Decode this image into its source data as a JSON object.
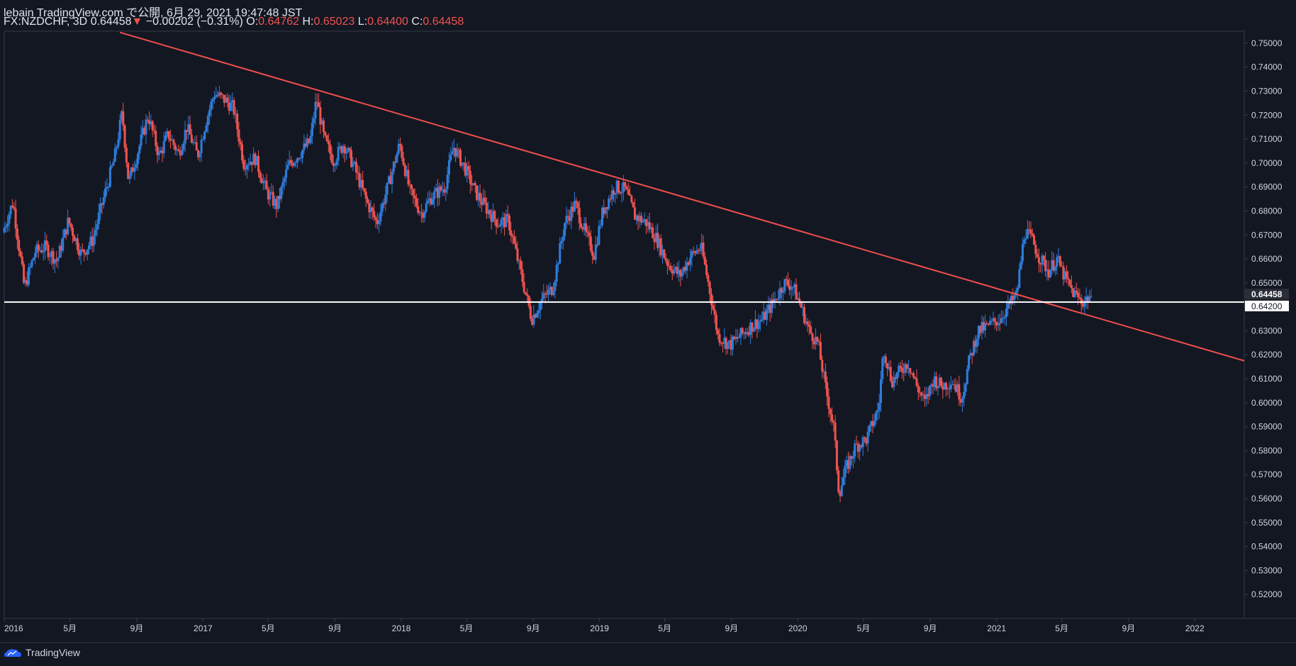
{
  "header": {
    "publisher_line": "lebain TradingView.com で公開, 6月 29, 2021 19:47:48 JST",
    "symbol": "FX:NZDCHF, 3D",
    "last": "0.64458",
    "change_arrow": "▼",
    "change": "−0.00202 (−0.31%)",
    "o_label": "O:",
    "o_value": "0.64762",
    "h_label": "H:",
    "h_value": "0.65023",
    "l_label": "L:",
    "l_value": "0.64400",
    "c_label": "C:",
    "c_value": "0.64458"
  },
  "footer": {
    "brand": "TradingView"
  },
  "colors": {
    "background": "#131722",
    "up": "#2f7ddc",
    "down": "#ef5350",
    "trendline": "#f04e4e",
    "hline": "#ffffff",
    "axis_text": "#d1d4dc",
    "border": "#363a45"
  },
  "chart_data": {
    "type": "candlestick",
    "ylim": [
      0.51,
      0.755
    ],
    "xlim": [
      "2016-01-01",
      "2022-04-02"
    ],
    "y_ticks": [
      "0.52000",
      "0.53000",
      "0.54000",
      "0.55000",
      "0.56000",
      "0.57000",
      "0.58000",
      "0.59000",
      "0.60000",
      "0.61000",
      "0.62000",
      "0.63000",
      "0.64000",
      "0.65000",
      "0.66000",
      "0.67000",
      "0.68000",
      "0.69000",
      "0.70000",
      "0.71000",
      "0.72000",
      "0.73000",
      "0.74000",
      "0.75000"
    ],
    "x_ticks": [
      {
        "label": "2016",
        "date": "2016-01-01"
      },
      {
        "label": "5月",
        "date": "2016-05-01"
      },
      {
        "label": "9月",
        "date": "2016-09-01"
      },
      {
        "label": "2017",
        "date": "2017-01-01"
      },
      {
        "label": "5月",
        "date": "2017-05-01"
      },
      {
        "label": "9月",
        "date": "2017-09-01"
      },
      {
        "label": "2018",
        "date": "2018-01-01"
      },
      {
        "label": "5月",
        "date": "2018-05-01"
      },
      {
        "label": "9月",
        "date": "2018-09-01"
      },
      {
        "label": "2019",
        "date": "2019-01-01"
      },
      {
        "label": "5月",
        "date": "2019-05-01"
      },
      {
        "label": "9月",
        "date": "2019-09-01"
      },
      {
        "label": "2020",
        "date": "2020-01-01"
      },
      {
        "label": "5月",
        "date": "2020-05-01"
      },
      {
        "label": "9月",
        "date": "2020-09-01"
      },
      {
        "label": "2021",
        "date": "2021-01-01"
      },
      {
        "label": "5月",
        "date": "2021-05-01"
      },
      {
        "label": "9月",
        "date": "2021-09-01"
      },
      {
        "label": "2022",
        "date": "2022-01-01"
      }
    ],
    "price_markers": [
      {
        "label": "0.64458",
        "value": 0.64458
      },
      {
        "label": "0.64200",
        "value": 0.642
      }
    ],
    "horizontal_line": {
      "value": 0.642
    },
    "trendline": {
      "p1": {
        "date": "2016-08-01",
        "value": 0.7545
      },
      "p2": {
        "date": "2022-04-02",
        "value": 0.6175
      }
    },
    "closes": [
      {
        "date": "2016-01-01",
        "close": 0.671
      },
      {
        "date": "2016-01-20",
        "close": 0.684
      },
      {
        "date": "2016-02-10",
        "close": 0.648
      },
      {
        "date": "2016-03-01",
        "close": 0.663
      },
      {
        "date": "2016-03-20",
        "close": 0.665
      },
      {
        "date": "2016-04-10",
        "close": 0.659
      },
      {
        "date": "2016-05-01",
        "close": 0.676
      },
      {
        "date": "2016-05-25",
        "close": 0.662
      },
      {
        "date": "2016-06-15",
        "close": 0.668
      },
      {
        "date": "2016-07-01",
        "close": 0.682
      },
      {
        "date": "2016-07-25",
        "close": 0.702
      },
      {
        "date": "2016-08-08",
        "close": 0.721
      },
      {
        "date": "2016-08-20",
        "close": 0.692
      },
      {
        "date": "2016-09-05",
        "close": 0.704
      },
      {
        "date": "2016-09-25",
        "close": 0.72
      },
      {
        "date": "2016-10-15",
        "close": 0.703
      },
      {
        "date": "2016-11-01",
        "close": 0.712
      },
      {
        "date": "2016-11-20",
        "close": 0.704
      },
      {
        "date": "2016-12-05",
        "close": 0.715
      },
      {
        "date": "2016-12-25",
        "close": 0.703
      },
      {
        "date": "2017-01-10",
        "close": 0.718
      },
      {
        "date": "2017-01-25",
        "close": 0.729
      },
      {
        "date": "2017-02-15",
        "close": 0.726
      },
      {
        "date": "2017-03-01",
        "close": 0.723
      },
      {
        "date": "2017-03-20",
        "close": 0.7
      },
      {
        "date": "2017-04-10",
        "close": 0.702
      },
      {
        "date": "2017-05-01",
        "close": 0.688
      },
      {
        "date": "2017-05-20",
        "close": 0.682
      },
      {
        "date": "2017-06-10",
        "close": 0.699
      },
      {
        "date": "2017-07-01",
        "close": 0.704
      },
      {
        "date": "2017-07-20",
        "close": 0.709
      },
      {
        "date": "2017-08-01",
        "close": 0.727
      },
      {
        "date": "2017-08-15",
        "close": 0.71
      },
      {
        "date": "2017-09-01",
        "close": 0.701
      },
      {
        "date": "2017-09-20",
        "close": 0.708
      },
      {
        "date": "2017-10-10",
        "close": 0.698
      },
      {
        "date": "2017-11-01",
        "close": 0.684
      },
      {
        "date": "2017-11-20",
        "close": 0.675
      },
      {
        "date": "2017-12-10",
        "close": 0.69
      },
      {
        "date": "2018-01-01",
        "close": 0.708
      },
      {
        "date": "2018-01-20",
        "close": 0.688
      },
      {
        "date": "2018-02-10",
        "close": 0.679
      },
      {
        "date": "2018-03-01",
        "close": 0.686
      },
      {
        "date": "2018-03-25",
        "close": 0.69
      },
      {
        "date": "2018-04-10",
        "close": 0.707
      },
      {
        "date": "2018-05-01",
        "close": 0.698
      },
      {
        "date": "2018-05-20",
        "close": 0.688
      },
      {
        "date": "2018-06-10",
        "close": 0.681
      },
      {
        "date": "2018-07-01",
        "close": 0.675
      },
      {
        "date": "2018-07-20",
        "close": 0.676
      },
      {
        "date": "2018-08-10",
        "close": 0.656
      },
      {
        "date": "2018-09-01",
        "close": 0.635
      },
      {
        "date": "2018-09-20",
        "close": 0.643
      },
      {
        "date": "2018-10-10",
        "close": 0.648
      },
      {
        "date": "2018-11-01",
        "close": 0.675
      },
      {
        "date": "2018-11-20",
        "close": 0.683
      },
      {
        "date": "2018-12-10",
        "close": 0.67
      },
      {
        "date": "2018-12-25",
        "close": 0.662
      },
      {
        "date": "2019-01-10",
        "close": 0.68
      },
      {
        "date": "2019-02-01",
        "close": 0.69
      },
      {
        "date": "2019-02-20",
        "close": 0.689
      },
      {
        "date": "2019-03-10",
        "close": 0.678
      },
      {
        "date": "2019-04-01",
        "close": 0.675
      },
      {
        "date": "2019-04-20",
        "close": 0.668
      },
      {
        "date": "2019-05-10",
        "close": 0.658
      },
      {
        "date": "2019-06-01",
        "close": 0.653
      },
      {
        "date": "2019-06-20",
        "close": 0.661
      },
      {
        "date": "2019-07-10",
        "close": 0.665
      },
      {
        "date": "2019-07-25",
        "close": 0.648
      },
      {
        "date": "2019-08-10",
        "close": 0.628
      },
      {
        "date": "2019-09-01",
        "close": 0.624
      },
      {
        "date": "2019-09-20",
        "close": 0.628
      },
      {
        "date": "2019-10-10",
        "close": 0.632
      },
      {
        "date": "2019-11-01",
        "close": 0.635
      },
      {
        "date": "2019-11-20",
        "close": 0.642
      },
      {
        "date": "2019-12-10",
        "close": 0.65
      },
      {
        "date": "2019-12-25",
        "close": 0.649
      },
      {
        "date": "2020-01-10",
        "close": 0.64
      },
      {
        "date": "2020-01-25",
        "close": 0.63
      },
      {
        "date": "2020-02-10",
        "close": 0.625
      },
      {
        "date": "2020-02-25",
        "close": 0.605
      },
      {
        "date": "2020-03-10",
        "close": 0.59
      },
      {
        "date": "2020-03-20",
        "close": 0.562
      },
      {
        "date": "2020-04-01",
        "close": 0.572
      },
      {
        "date": "2020-04-20",
        "close": 0.582
      },
      {
        "date": "2020-05-10",
        "close": 0.585
      },
      {
        "date": "2020-06-01",
        "close": 0.598
      },
      {
        "date": "2020-06-10",
        "close": 0.623
      },
      {
        "date": "2020-06-25",
        "close": 0.609
      },
      {
        "date": "2020-07-10",
        "close": 0.613
      },
      {
        "date": "2020-07-25",
        "close": 0.617
      },
      {
        "date": "2020-08-10",
        "close": 0.607
      },
      {
        "date": "2020-08-25",
        "close": 0.6
      },
      {
        "date": "2020-09-10",
        "close": 0.61
      },
      {
        "date": "2020-09-25",
        "close": 0.607
      },
      {
        "date": "2020-10-15",
        "close": 0.609
      },
      {
        "date": "2020-11-01",
        "close": 0.602
      },
      {
        "date": "2020-11-15",
        "close": 0.618
      },
      {
        "date": "2020-12-01",
        "close": 0.63
      },
      {
        "date": "2020-12-20",
        "close": 0.632
      },
      {
        "date": "2021-01-10",
        "close": 0.635
      },
      {
        "date": "2021-01-25",
        "close": 0.64
      },
      {
        "date": "2021-02-10",
        "close": 0.645
      },
      {
        "date": "2021-02-25",
        "close": 0.672
      },
      {
        "date": "2021-03-10",
        "close": 0.668
      },
      {
        "date": "2021-03-25",
        "close": 0.66
      },
      {
        "date": "2021-04-10",
        "close": 0.655
      },
      {
        "date": "2021-04-25",
        "close": 0.66
      },
      {
        "date": "2021-05-10",
        "close": 0.652
      },
      {
        "date": "2021-05-25",
        "close": 0.646
      },
      {
        "date": "2021-06-10",
        "close": 0.642
      },
      {
        "date": "2021-06-26",
        "close": 0.64458
      }
    ]
  }
}
